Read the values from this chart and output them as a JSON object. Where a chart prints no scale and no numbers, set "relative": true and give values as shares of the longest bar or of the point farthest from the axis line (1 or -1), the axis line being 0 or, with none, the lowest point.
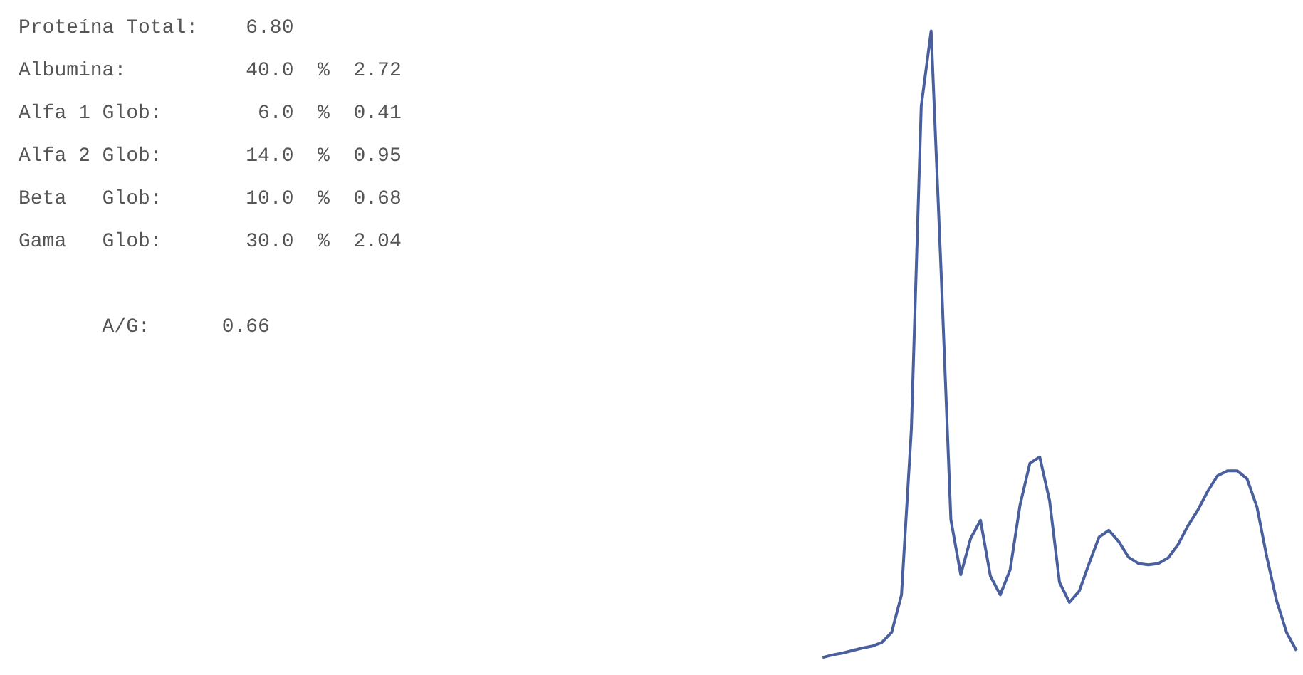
{
  "chart_data": {
    "type": "line",
    "relative": true,
    "categories": [
      null,
      null,
      null,
      null,
      null,
      null,
      null,
      null,
      null,
      null,
      null,
      null,
      null,
      null,
      null,
      null,
      null,
      null,
      null,
      null,
      null,
      null,
      null,
      null,
      null,
      null,
      null,
      null,
      null,
      null,
      null,
      null,
      null,
      null,
      null,
      null,
      null,
      null,
      null,
      null,
      null,
      null,
      null,
      null,
      null,
      null,
      null,
      null,
      null
    ],
    "series": [
      {
        "color": "#4a5f9e",
        "values": [
          0,
          0.004,
          0.007,
          0.011,
          0.015,
          0.018,
          0.024,
          0.04,
          0.1,
          0.364,
          0.88,
          1,
          0.62,
          0.22,
          0.132,
          0.19,
          0.219,
          0.13,
          0.1,
          0.14,
          0.243,
          0.31,
          0.32,
          0.25,
          0.12,
          0.088,
          0.106,
          0.15,
          0.192,
          0.203,
          0.185,
          0.16,
          0.15,
          0.148,
          0.15,
          0.159,
          0.18,
          0.21,
          0.235,
          0.265,
          0.29,
          0.298,
          0.298,
          0.285,
          0.24,
          0.16,
          0.09,
          0.04,
          0.011
        ]
      }
    ],
    "annotations": [
      "Proteína Total:    6.80",
      "Albumina:          40.0  %  2.72",
      "Alfa 1 Glob:        6.0  %  0.41",
      "Alfa 2 Glob:       14.0  %  0.95",
      "Beta   Glob:       10.0  %  0.68",
      "Gama   Glob:       30.0  %  2.04",
      "       A/G:      0.66"
    ],
    "grid": false,
    "marker": "none",
    "line_style": "solid"
  }
}
